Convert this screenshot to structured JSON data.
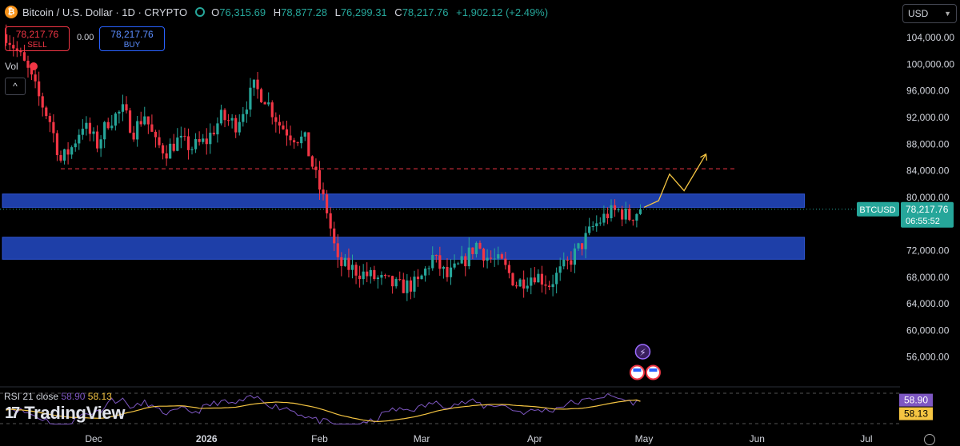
{
  "header": {
    "symbol_title": "Bitcoin / U.S. Dollar · 1D · CRYPTO",
    "coin_icon": "bitcoin-icon",
    "open_label": "O",
    "open": "76,315.69",
    "high_label": "H",
    "high": "78,877.28",
    "low_label": "L",
    "low": "76,299.31",
    "close_label": "C",
    "close": "78,217.76",
    "change": "+1,902.12 (+2.49%)"
  },
  "trade": {
    "sell_price": "78,217.76",
    "sell_label": "SELL",
    "spread": "0.00",
    "buy_price": "78,217.76",
    "buy_label": "BUY"
  },
  "volume_label": "Vol",
  "collapse_icon": "chevron-up-icon",
  "currency": "USD",
  "price_tag": {
    "ticker": "BTCUSD",
    "price": "78,217.76",
    "countdown": "06:55:52"
  },
  "rsi": {
    "label": "RSI 21 close",
    "value": "58.90",
    "ma": "58.13"
  },
  "branding": "TradingView",
  "colors": {
    "up": "#26a69a",
    "down": "#f23645",
    "zone": "#1e3fa8",
    "projection": "#f5c542",
    "rsi": "#7e57c2",
    "rsi_ma": "#f5c542"
  },
  "chart_data": {
    "type": "candlestick",
    "y_axis_ticks": [
      "56,000.00",
      "60,000.00",
      "64,000.00",
      "68,000.00",
      "72,000.00",
      "80,000.00",
      "84,000.00",
      "88,000.00",
      "92,000.00",
      "96,000.00",
      "100,000.00",
      "104,000.00"
    ],
    "y_axis_values": [
      56000,
      60000,
      64000,
      68000,
      72000,
      80000,
      84000,
      88000,
      92000,
      96000,
      100000,
      104000
    ],
    "ylim": [
      52000,
      107500
    ],
    "x_axis_ticks": [
      "Dec",
      "2026",
      "Feb",
      "Mar",
      "Apr",
      "May",
      "Jun",
      "Jul"
    ],
    "x_axis_dates": [
      "2025-12-01",
      "2026-01-01",
      "2026-02-01",
      "2026-03-01",
      "2026-04-01",
      "2026-05-01",
      "2026-06-01",
      "2026-07-01"
    ],
    "path_points": [
      [
        "2025-11-07",
        104500
      ],
      [
        "2025-11-10",
        102000
      ],
      [
        "2025-11-13",
        99000
      ],
      [
        "2025-11-16",
        95000
      ],
      [
        "2025-11-19",
        91500
      ],
      [
        "2025-11-22",
        85500
      ],
      [
        "2025-11-25",
        87500
      ],
      [
        "2025-11-28",
        91000
      ],
      [
        "2025-12-02",
        88000
      ],
      [
        "2025-12-05",
        91500
      ],
      [
        "2025-12-09",
        93000
      ],
      [
        "2025-12-12",
        90000
      ],
      [
        "2025-12-15",
        92500
      ],
      [
        "2025-12-18",
        88000
      ],
      [
        "2025-12-21",
        87000
      ],
      [
        "2025-12-24",
        88500
      ],
      [
        "2025-12-28",
        87500
      ],
      [
        "2026-01-01",
        88500
      ],
      [
        "2026-01-05",
        92000
      ],
      [
        "2026-01-09",
        91000
      ],
      [
        "2026-01-14",
        96500
      ],
      [
        "2026-01-17",
        95000
      ],
      [
        "2026-01-21",
        91000
      ],
      [
        "2026-01-24",
        89500
      ],
      [
        "2026-01-28",
        88500
      ],
      [
        "2026-01-31",
        83000
      ],
      [
        "2026-02-03",
        78000
      ],
      [
        "2026-02-06",
        70000
      ],
      [
        "2026-02-09",
        69500
      ],
      [
        "2026-02-13",
        68500
      ],
      [
        "2026-02-18",
        67500
      ],
      [
        "2026-02-23",
        66500
      ],
      [
        "2026-02-28",
        67000
      ],
      [
        "2026-03-04",
        71000
      ],
      [
        "2026-03-08",
        68000
      ],
      [
        "2026-03-12",
        70000
      ],
      [
        "2026-03-16",
        73000
      ],
      [
        "2026-03-19",
        71000
      ],
      [
        "2026-03-23",
        70000
      ],
      [
        "2026-03-27",
        67000
      ],
      [
        "2026-04-01",
        68500
      ],
      [
        "2026-04-05",
        67000
      ],
      [
        "2026-04-10",
        70000
      ],
      [
        "2026-04-14",
        73000
      ],
      [
        "2026-04-17",
        75500
      ],
      [
        "2026-04-21",
        77500
      ],
      [
        "2026-04-24",
        78000
      ],
      [
        "2026-04-27",
        77000
      ],
      [
        "2026-04-30",
        78217.76
      ]
    ],
    "zones": [
      {
        "from_date": "2025-11-06",
        "to_date": "2026-06-14",
        "low": 78500,
        "high": 80500
      },
      {
        "from_date": "2025-11-06",
        "to_date": "2026-06-14",
        "low": 70700,
        "high": 74000
      }
    ],
    "dashed_level": {
      "value": 84300,
      "from_date": "2025-11-22",
      "to_date": "2026-05-26"
    },
    "projection": [
      [
        "2026-05-01",
        78500
      ],
      [
        "2026-05-05",
        79500
      ],
      [
        "2026-05-08",
        83500
      ],
      [
        "2026-05-12",
        81000
      ],
      [
        "2026-05-18",
        86500
      ]
    ],
    "last_price": 78217.76,
    "rsi": {
      "value": 58.9,
      "ma": 58.13
    }
  }
}
